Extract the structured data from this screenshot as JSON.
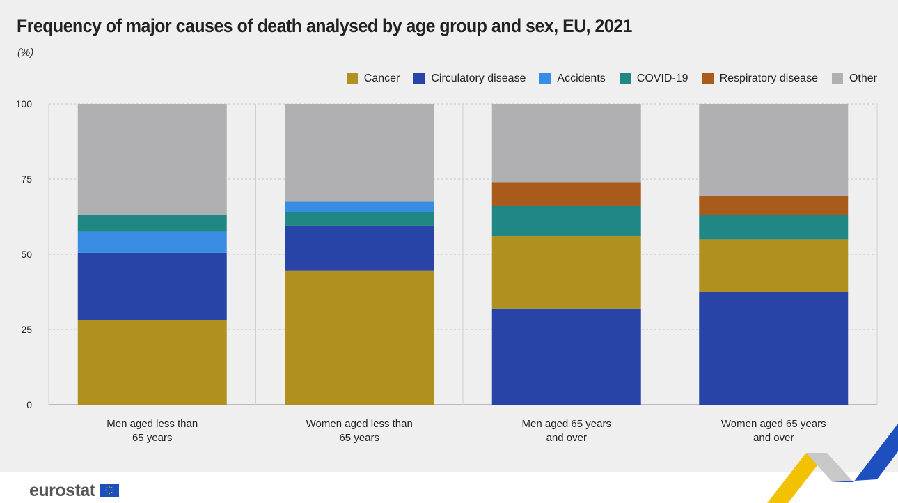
{
  "header": {
    "title": "Frequency of major causes of death analysed by age group and sex, EU, 2021",
    "unit": "(%)"
  },
  "chart_data": {
    "type": "bar",
    "stacked": true,
    "title": "Frequency of major causes of death analysed by age group and sex, EU, 2021",
    "ylabel": "(%)",
    "ylim": [
      0,
      100
    ],
    "yticks": [
      "0",
      "25",
      "50",
      "75",
      "100"
    ],
    "grid": true,
    "legend_position": "top-right",
    "categories": [
      [
        "Men aged less than",
        "65 years"
      ],
      [
        "Women aged less than",
        "65 years"
      ],
      [
        "Men aged 65 years",
        "and over"
      ],
      [
        "Women aged 65 years",
        "and over"
      ]
    ],
    "series": [
      {
        "name": "Cancer",
        "color": "#b0901f"
      },
      {
        "name": "Circulatory disease",
        "color": "#2944a7"
      },
      {
        "name": "Accidents",
        "color": "#388de3"
      },
      {
        "name": "COVID-19",
        "color": "#218784"
      },
      {
        "name": "Respiratory disease",
        "color": "#a95b1c"
      },
      {
        "name": "Other",
        "color": "#b0b0b2"
      }
    ],
    "bars": [
      [
        {
          "series": "Cancer",
          "value": 28
        },
        {
          "series": "Circulatory disease",
          "value": 22.5
        },
        {
          "series": "Accidents",
          "value": 7
        },
        {
          "series": "COVID-19",
          "value": 5.5
        },
        {
          "series": "Other",
          "value": 37
        }
      ],
      [
        {
          "series": "Cancer",
          "value": 44.5
        },
        {
          "series": "Circulatory disease",
          "value": 15
        },
        {
          "series": "COVID-19",
          "value": 4.5
        },
        {
          "series": "Accidents",
          "value": 3.5
        },
        {
          "series": "Other",
          "value": 32.5
        }
      ],
      [
        {
          "series": "Circulatory disease",
          "value": 32
        },
        {
          "series": "Cancer",
          "value": 24
        },
        {
          "series": "COVID-19",
          "value": 10
        },
        {
          "series": "Respiratory disease",
          "value": 8
        },
        {
          "series": "Other",
          "value": 26
        }
      ],
      [
        {
          "series": "Circulatory disease",
          "value": 37.5
        },
        {
          "series": "Cancer",
          "value": 17.5
        },
        {
          "series": "COVID-19",
          "value": 8
        },
        {
          "series": "Respiratory disease",
          "value": 6.5
        },
        {
          "series": "Other",
          "value": 30.5
        }
      ]
    ]
  },
  "footer": {
    "logo_text": "eurostat",
    "accent_yellow": "#f2c200",
    "accent_blue": "#1e4fbf"
  }
}
